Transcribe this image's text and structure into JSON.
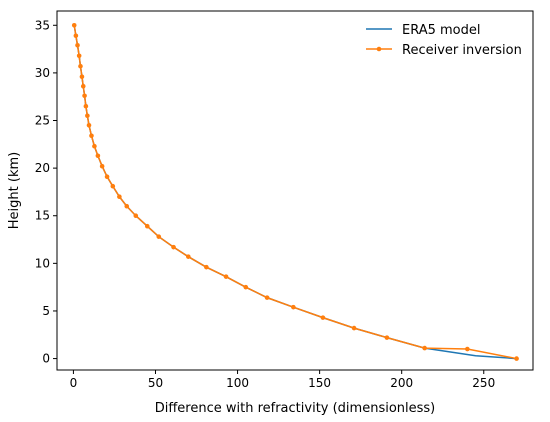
{
  "chart_data": {
    "type": "line",
    "xlabel": "Difference with refractivity (dimensionless)",
    "ylabel": "Height (km)",
    "xlim": [
      -10,
      280
    ],
    "ylim": [
      -1.2,
      36.5
    ],
    "xticks": [
      0,
      50,
      100,
      150,
      200,
      250
    ],
    "yticks": [
      0,
      5,
      10,
      15,
      20,
      25,
      30,
      35
    ],
    "grid": false,
    "legend_position": "top-right",
    "series": [
      {
        "name": "ERA5 model",
        "color": "#1f77b4",
        "marker": "none",
        "points": [
          [
            0.5,
            35.0
          ],
          [
            1.5,
            33.9
          ],
          [
            2.5,
            32.9
          ],
          [
            3.5,
            31.8
          ],
          [
            4.3,
            30.7
          ],
          [
            5.2,
            29.6
          ],
          [
            6.0,
            28.6
          ],
          [
            6.8,
            27.6
          ],
          [
            7.6,
            26.5
          ],
          [
            8.5,
            25.5
          ],
          [
            9.5,
            24.5
          ],
          [
            11.0,
            23.4
          ],
          [
            12.8,
            22.3
          ],
          [
            14.9,
            21.3
          ],
          [
            17.5,
            20.2
          ],
          [
            20.5,
            19.1
          ],
          [
            24.0,
            18.1
          ],
          [
            28.0,
            17.0
          ],
          [
            32.5,
            16.0
          ],
          [
            38.0,
            15.0
          ],
          [
            45.0,
            13.9
          ],
          [
            52.0,
            12.8
          ],
          [
            61.0,
            11.7
          ],
          [
            70.0,
            10.7
          ],
          [
            81.0,
            9.6
          ],
          [
            93.0,
            8.6
          ],
          [
            105.0,
            7.5
          ],
          [
            118.0,
            6.4
          ],
          [
            134.0,
            5.4
          ],
          [
            152.0,
            4.3
          ],
          [
            171.0,
            3.2
          ],
          [
            191.0,
            2.2
          ],
          [
            214.0,
            1.1
          ],
          [
            245.0,
            0.3
          ],
          [
            270.0,
            0.0
          ]
        ]
      },
      {
        "name": "Receiver inversion",
        "color": "#ff7f0e",
        "marker": "circle",
        "points": [
          [
            0.5,
            35.0
          ],
          [
            1.5,
            33.9
          ],
          [
            2.5,
            32.9
          ],
          [
            3.5,
            31.8
          ],
          [
            4.3,
            30.7
          ],
          [
            5.2,
            29.6
          ],
          [
            6.0,
            28.6
          ],
          [
            6.8,
            27.6
          ],
          [
            7.6,
            26.5
          ],
          [
            8.5,
            25.5
          ],
          [
            9.5,
            24.5
          ],
          [
            11.0,
            23.4
          ],
          [
            12.8,
            22.3
          ],
          [
            14.9,
            21.3
          ],
          [
            17.5,
            20.2
          ],
          [
            20.5,
            19.1
          ],
          [
            24.0,
            18.1
          ],
          [
            28.0,
            17.0
          ],
          [
            32.5,
            16.0
          ],
          [
            38.0,
            15.0
          ],
          [
            45.0,
            13.9
          ],
          [
            52.0,
            12.8
          ],
          [
            61.0,
            11.7
          ],
          [
            70.0,
            10.7
          ],
          [
            81.0,
            9.6
          ],
          [
            93.0,
            8.6
          ],
          [
            105.0,
            7.5
          ],
          [
            118.0,
            6.4
          ],
          [
            134.0,
            5.4
          ],
          [
            152.0,
            4.3
          ],
          [
            171.0,
            3.2
          ],
          [
            191.0,
            2.2
          ],
          [
            214.0,
            1.1
          ],
          [
            240.0,
            1.0
          ],
          [
            270.0,
            0.0
          ]
        ]
      }
    ]
  }
}
